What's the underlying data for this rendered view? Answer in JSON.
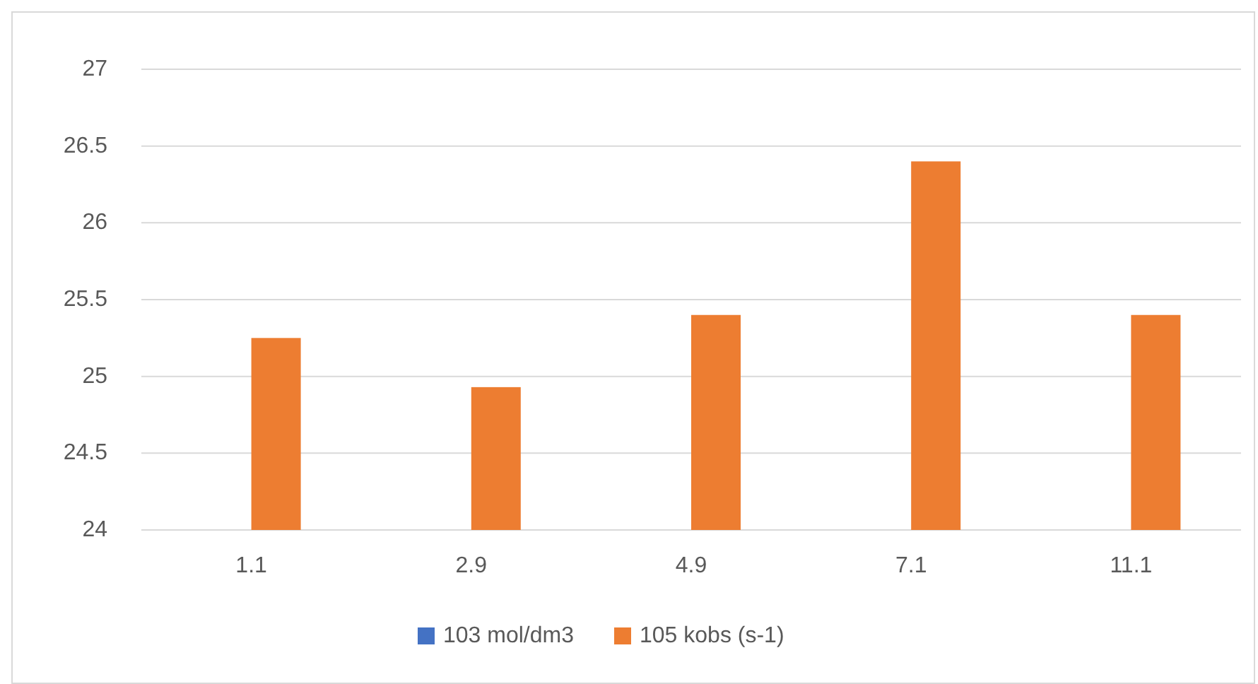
{
  "chart_data": {
    "type": "bar",
    "categories": [
      "1.1",
      "2.9",
      "4.9",
      "7.1",
      "11.1"
    ],
    "series": [
      {
        "name": "103 mol/dm3",
        "color": "#4472c4",
        "values": [
          null,
          null,
          null,
          null,
          null
        ]
      },
      {
        "name": "105 kobs (s-1)",
        "color": "#ed7d31",
        "values": [
          25.25,
          24.93,
          25.4,
          26.4,
          25.4
        ]
      }
    ],
    "ylim": [
      24,
      27
    ],
    "yticks": [
      24,
      24.5,
      25,
      25.5,
      26,
      26.5,
      27
    ],
    "grid": "y",
    "legend": "bottom"
  }
}
